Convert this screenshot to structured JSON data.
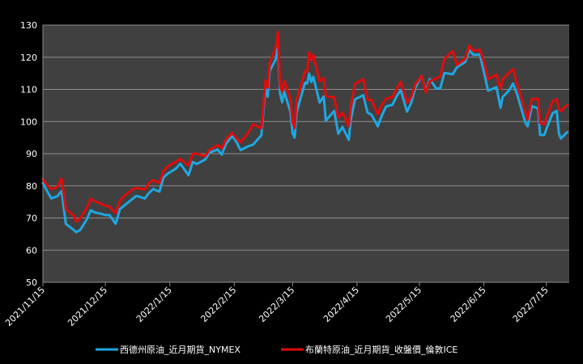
{
  "chart_data": {
    "type": "line",
    "title": "",
    "xlabel": "",
    "ylabel": "",
    "ylim": [
      50,
      130
    ],
    "y_ticks": [
      50,
      60,
      70,
      80,
      90,
      100,
      110,
      120,
      130
    ],
    "x_range": [
      "2021-11-15",
      "2022-07-26"
    ],
    "x_tick_labels": [
      "2021/11/15",
      "2021/12/15",
      "2022/1/15",
      "2022/2/15",
      "2022/3/15",
      "2022/4/15",
      "2022/5/15",
      "2022/6/15",
      "2022/7/15"
    ],
    "x_ticks": [
      "2021-11-15",
      "2021-12-15",
      "2022-01-15",
      "2022-02-15",
      "2022-03-15",
      "2022-04-15",
      "2022-05-15",
      "2022-06-15",
      "2022-07-15"
    ],
    "grid": "horizontal",
    "legend_position": "bottom",
    "background": "#404040",
    "series": [
      {
        "name": "西德州原油_近月期貨_NYMEX",
        "color": "#1fa7e0",
        "points": [
          [
            "2021-11-15",
            80.9
          ],
          [
            "2021-11-17",
            78.4
          ],
          [
            "2021-11-19",
            76.1
          ],
          [
            "2021-11-22",
            76.8
          ],
          [
            "2021-11-24",
            78.4
          ],
          [
            "2021-11-26",
            68.2
          ],
          [
            "2021-11-30",
            66.2
          ],
          [
            "2021-12-01",
            65.6
          ],
          [
            "2021-12-03",
            66.3
          ],
          [
            "2021-12-06",
            69.5
          ],
          [
            "2021-12-08",
            72.4
          ],
          [
            "2021-12-10",
            71.7
          ],
          [
            "2021-12-13",
            71.3
          ],
          [
            "2021-12-15",
            70.9
          ],
          [
            "2021-12-17",
            70.9
          ],
          [
            "2021-12-20",
            68.2
          ],
          [
            "2021-12-22",
            72.8
          ],
          [
            "2021-12-24",
            73.8
          ],
          [
            "2021-12-28",
            75.9
          ],
          [
            "2021-12-30",
            76.9
          ],
          [
            "2022-01-03",
            76.1
          ],
          [
            "2022-01-05",
            77.8
          ],
          [
            "2022-01-07",
            79.0
          ],
          [
            "2022-01-10",
            78.2
          ],
          [
            "2022-01-12",
            82.6
          ],
          [
            "2022-01-14",
            83.8
          ],
          [
            "2022-01-18",
            85.4
          ],
          [
            "2022-01-20",
            86.9
          ],
          [
            "2022-01-24",
            83.3
          ],
          [
            "2022-01-26",
            87.4
          ],
          [
            "2022-01-28",
            86.8
          ],
          [
            "2022-02-01",
            88.2
          ],
          [
            "2022-02-03",
            90.3
          ],
          [
            "2022-02-07",
            91.3
          ],
          [
            "2022-02-09",
            89.7
          ],
          [
            "2022-02-11",
            93.1
          ],
          [
            "2022-02-14",
            95.5
          ],
          [
            "2022-02-16",
            93.7
          ],
          [
            "2022-02-18",
            91.1
          ],
          [
            "2022-02-22",
            92.4
          ],
          [
            "2022-02-24",
            92.8
          ],
          [
            "2022-02-28",
            95.7
          ],
          [
            "2022-03-01",
            103.4
          ],
          [
            "2022-03-02",
            110.6
          ],
          [
            "2022-03-03",
            107.7
          ],
          [
            "2022-03-04",
            115.7
          ],
          [
            "2022-03-07",
            119.4
          ],
          [
            "2022-03-08",
            123.7
          ],
          [
            "2022-03-09",
            108.7
          ],
          [
            "2022-03-10",
            106.0
          ],
          [
            "2022-03-11",
            109.3
          ],
          [
            "2022-03-14",
            103.0
          ],
          [
            "2022-03-15",
            96.4
          ],
          [
            "2022-03-16",
            95.0
          ],
          [
            "2022-03-17",
            102.9
          ],
          [
            "2022-03-21",
            112.1
          ],
          [
            "2022-03-22",
            111.8
          ],
          [
            "2022-03-23",
            114.9
          ],
          [
            "2022-03-24",
            112.3
          ],
          [
            "2022-03-25",
            113.9
          ],
          [
            "2022-03-28",
            105.9
          ],
          [
            "2022-03-30",
            107.8
          ],
          [
            "2022-03-31",
            100.3
          ],
          [
            "2022-04-04",
            103.3
          ],
          [
            "2022-04-06",
            96.2
          ],
          [
            "2022-04-08",
            98.3
          ],
          [
            "2022-04-11",
            94.3
          ],
          [
            "2022-04-12",
            100.6
          ],
          [
            "2022-04-14",
            106.9
          ],
          [
            "2022-04-18",
            108.2
          ],
          [
            "2022-04-20",
            102.8
          ],
          [
            "2022-04-22",
            102.1
          ],
          [
            "2022-04-25",
            98.5
          ],
          [
            "2022-04-27",
            102.0
          ],
          [
            "2022-04-29",
            104.7
          ],
          [
            "2022-05-02",
            105.2
          ],
          [
            "2022-05-04",
            107.8
          ],
          [
            "2022-05-06",
            109.8
          ],
          [
            "2022-05-09",
            103.1
          ],
          [
            "2022-05-11",
            105.7
          ],
          [
            "2022-05-13",
            110.5
          ],
          [
            "2022-05-16",
            114.2
          ],
          [
            "2022-05-18",
            109.6
          ],
          [
            "2022-05-20",
            113.2
          ],
          [
            "2022-05-23",
            110.3
          ],
          [
            "2022-05-25",
            110.3
          ],
          [
            "2022-05-27",
            115.1
          ],
          [
            "2022-05-31",
            114.7
          ],
          [
            "2022-06-02",
            116.9
          ],
          [
            "2022-06-06",
            118.5
          ],
          [
            "2022-06-08",
            122.1
          ],
          [
            "2022-06-10",
            120.7
          ],
          [
            "2022-06-13",
            120.9
          ],
          [
            "2022-06-15",
            115.3
          ],
          [
            "2022-06-17",
            109.6
          ],
          [
            "2022-06-21",
            110.7
          ],
          [
            "2022-06-23",
            104.3
          ],
          [
            "2022-06-24",
            107.6
          ],
          [
            "2022-06-27",
            109.6
          ],
          [
            "2022-06-29",
            111.8
          ],
          [
            "2022-07-01",
            108.4
          ],
          [
            "2022-07-05",
            99.5
          ],
          [
            "2022-07-06",
            98.5
          ],
          [
            "2022-07-08",
            104.8
          ],
          [
            "2022-07-11",
            104.1
          ],
          [
            "2022-07-12",
            95.8
          ],
          [
            "2022-07-14",
            95.8
          ],
          [
            "2022-07-15",
            97.6
          ],
          [
            "2022-07-18",
            102.6
          ],
          [
            "2022-07-20",
            103.3
          ],
          [
            "2022-07-21",
            96.4
          ],
          [
            "2022-07-22",
            94.7
          ],
          [
            "2022-07-25",
            96.7
          ]
        ]
      },
      {
        "name": "布蘭特原油_近月期貨_收盤價_倫敦ICE",
        "color": "#e00c0c",
        "points": [
          [
            "2021-11-15",
            82.1
          ],
          [
            "2021-11-17",
            80.3
          ],
          [
            "2021-11-19",
            78.9
          ],
          [
            "2021-11-22",
            79.7
          ],
          [
            "2021-11-24",
            82.3
          ],
          [
            "2021-11-26",
            72.7
          ],
          [
            "2021-11-30",
            70.6
          ],
          [
            "2021-12-01",
            68.9
          ],
          [
            "2021-12-03",
            69.9
          ],
          [
            "2021-12-06",
            73.1
          ],
          [
            "2021-12-08",
            76.0
          ],
          [
            "2021-12-10",
            75.2
          ],
          [
            "2021-12-13",
            74.4
          ],
          [
            "2021-12-15",
            73.9
          ],
          [
            "2021-12-17",
            73.5
          ],
          [
            "2021-12-20",
            71.5
          ],
          [
            "2021-12-22",
            75.3
          ],
          [
            "2021-12-24",
            76.8
          ],
          [
            "2021-12-28",
            78.9
          ],
          [
            "2021-12-30",
            79.3
          ],
          [
            "2022-01-03",
            78.9
          ],
          [
            "2022-01-05",
            80.8
          ],
          [
            "2022-01-07",
            81.8
          ],
          [
            "2022-01-10",
            80.9
          ],
          [
            "2022-01-12",
            84.7
          ],
          [
            "2022-01-14",
            86.1
          ],
          [
            "2022-01-18",
            87.5
          ],
          [
            "2022-01-20",
            88.4
          ],
          [
            "2022-01-24",
            86.3
          ],
          [
            "2022-01-26",
            89.9
          ],
          [
            "2022-01-28",
            90.0
          ],
          [
            "2022-02-01",
            89.2
          ],
          [
            "2022-02-03",
            91.1
          ],
          [
            "2022-02-07",
            92.7
          ],
          [
            "2022-02-09",
            91.6
          ],
          [
            "2022-02-11",
            94.4
          ],
          [
            "2022-02-14",
            96.5
          ],
          [
            "2022-02-16",
            94.8
          ],
          [
            "2022-02-18",
            93.5
          ],
          [
            "2022-02-22",
            96.8
          ],
          [
            "2022-02-24",
            99.1
          ],
          [
            "2022-02-28",
            97.9
          ],
          [
            "2022-03-01",
            105.0
          ],
          [
            "2022-03-02",
            112.9
          ],
          [
            "2022-03-03",
            110.5
          ],
          [
            "2022-03-04",
            118.1
          ],
          [
            "2022-03-07",
            123.2
          ],
          [
            "2022-03-08",
            127.9
          ],
          [
            "2022-03-09",
            111.1
          ],
          [
            "2022-03-10",
            109.3
          ],
          [
            "2022-03-11",
            112.7
          ],
          [
            "2022-03-14",
            106.9
          ],
          [
            "2022-03-15",
            99.9
          ],
          [
            "2022-03-16",
            98.0
          ],
          [
            "2022-03-17",
            106.6
          ],
          [
            "2022-03-21",
            115.6
          ],
          [
            "2022-03-22",
            115.5
          ],
          [
            "2022-03-23",
            121.6
          ],
          [
            "2022-03-24",
            119.0
          ],
          [
            "2022-03-25",
            120.7
          ],
          [
            "2022-03-28",
            112.5
          ],
          [
            "2022-03-30",
            113.5
          ],
          [
            "2022-03-31",
            107.9
          ],
          [
            "2022-04-04",
            107.5
          ],
          [
            "2022-04-06",
            101.1
          ],
          [
            "2022-04-08",
            102.8
          ],
          [
            "2022-04-11",
            98.5
          ],
          [
            "2022-04-12",
            104.6
          ],
          [
            "2022-04-14",
            111.7
          ],
          [
            "2022-04-18",
            113.2
          ],
          [
            "2022-04-20",
            106.8
          ],
          [
            "2022-04-22",
            106.7
          ],
          [
            "2022-04-25",
            102.3
          ],
          [
            "2022-04-27",
            105.3
          ],
          [
            "2022-04-29",
            107.1
          ],
          [
            "2022-05-02",
            107.6
          ],
          [
            "2022-05-04",
            110.1
          ],
          [
            "2022-05-06",
            112.4
          ],
          [
            "2022-05-09",
            105.9
          ],
          [
            "2022-05-11",
            107.5
          ],
          [
            "2022-05-13",
            111.6
          ],
          [
            "2022-05-16",
            114.2
          ],
          [
            "2022-05-18",
            109.1
          ],
          [
            "2022-05-20",
            112.6
          ],
          [
            "2022-05-23",
            113.4
          ],
          [
            "2022-05-25",
            114.0
          ],
          [
            "2022-05-27",
            119.4
          ],
          [
            "2022-05-31",
            122.0
          ],
          [
            "2022-06-02",
            117.6
          ],
          [
            "2022-06-06",
            119.5
          ],
          [
            "2022-06-08",
            123.6
          ],
          [
            "2022-06-10",
            122.0
          ],
          [
            "2022-06-13",
            122.3
          ],
          [
            "2022-06-15",
            118.5
          ],
          [
            "2022-06-17",
            113.1
          ],
          [
            "2022-06-21",
            114.6
          ],
          [
            "2022-06-23",
            110.1
          ],
          [
            "2022-06-24",
            113.1
          ],
          [
            "2022-06-27",
            115.1
          ],
          [
            "2022-06-29",
            116.3
          ],
          [
            "2022-07-01",
            111.6
          ],
          [
            "2022-07-05",
            102.8
          ],
          [
            "2022-07-06",
            100.7
          ],
          [
            "2022-07-08",
            107.0
          ],
          [
            "2022-07-11",
            107.1
          ],
          [
            "2022-07-12",
            99.5
          ],
          [
            "2022-07-14",
            99.1
          ],
          [
            "2022-07-15",
            101.2
          ],
          [
            "2022-07-18",
            106.3
          ],
          [
            "2022-07-20",
            107.0
          ],
          [
            "2022-07-21",
            103.9
          ],
          [
            "2022-07-22",
            103.2
          ],
          [
            "2022-07-25",
            105.2
          ]
        ]
      }
    ]
  }
}
